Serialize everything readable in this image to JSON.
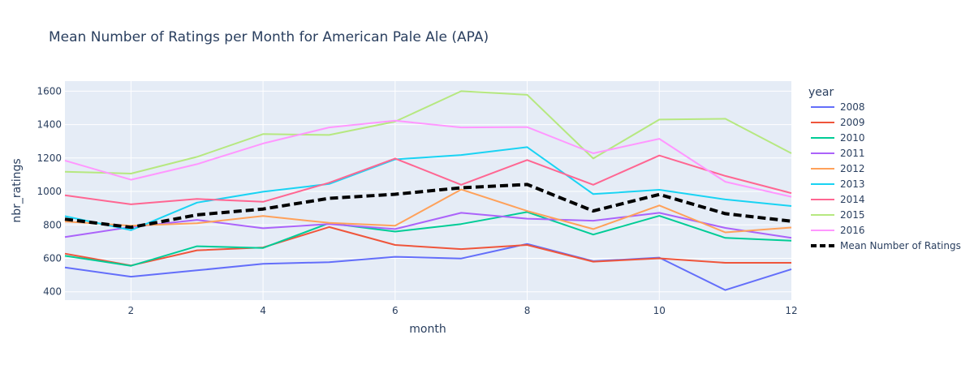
{
  "chart_data": {
    "type": "line",
    "title": "Mean Number of Ratings per Month for American Pale Ale (APA)",
    "xlabel": "month",
    "ylabel": "nbr_ratings",
    "xlim": [
      1,
      12
    ],
    "ylim": [
      350,
      1660
    ],
    "xticks": [
      2,
      4,
      6,
      8,
      10,
      12
    ],
    "yticks": [
      400,
      600,
      800,
      1000,
      1200,
      1400,
      1600
    ],
    "grid": true,
    "legend": {
      "title": "year",
      "placement": "right"
    },
    "x": [
      1,
      2,
      3,
      4,
      5,
      6,
      7,
      8,
      9,
      10,
      11,
      12
    ],
    "series": [
      {
        "name": "2008",
        "color": "#636efa",
        "values": [
          545,
          490,
          528,
          567,
          577,
          609,
          599,
          686,
          583,
          604,
          410,
          535
        ]
      },
      {
        "name": "2009",
        "color": "#EF553B",
        "values": [
          628,
          557,
          648,
          665,
          787,
          680,
          655,
          680,
          580,
          600,
          573,
          573
        ]
      },
      {
        "name": "2010",
        "color": "#00cc96",
        "values": [
          615,
          555,
          672,
          662,
          810,
          760,
          805,
          877,
          742,
          854,
          722,
          705
        ]
      },
      {
        "name": "2011",
        "color": "#ab63fa",
        "values": [
          727,
          787,
          830,
          780,
          805,
          775,
          872,
          837,
          825,
          872,
          782,
          722
        ]
      },
      {
        "name": "2012",
        "color": "#FFA15A",
        "values": [
          820,
          795,
          810,
          853,
          812,
          795,
          1012,
          883,
          775,
          916,
          755,
          784
        ]
      },
      {
        "name": "2013",
        "color": "#19d3f3",
        "values": [
          852,
          768,
          933,
          998,
          1045,
          1192,
          1218,
          1265,
          984,
          1010,
          952,
          913
        ]
      },
      {
        "name": "2014",
        "color": "#FF6692",
        "values": [
          977,
          923,
          955,
          938,
          1052,
          1197,
          1040,
          1188,
          1040,
          1215,
          1093,
          990
        ]
      },
      {
        "name": "2015",
        "color": "#B6E880",
        "values": [
          1118,
          1107,
          1207,
          1343,
          1338,
          1418,
          1600,
          1578,
          1197,
          1430,
          1435,
          1228
        ]
      },
      {
        "name": "2016",
        "color": "#FF97FF",
        "values": [
          1185,
          1070,
          1163,
          1287,
          1383,
          1423,
          1383,
          1385,
          1228,
          1315,
          1058,
          968
        ]
      },
      {
        "name": "Mean Number of Ratings",
        "color": "#000000",
        "dash": true,
        "values": [
          834,
          785,
          860,
          895,
          959,
          983,
          1022,
          1042,
          883,
          982,
          867,
          822
        ]
      }
    ]
  }
}
